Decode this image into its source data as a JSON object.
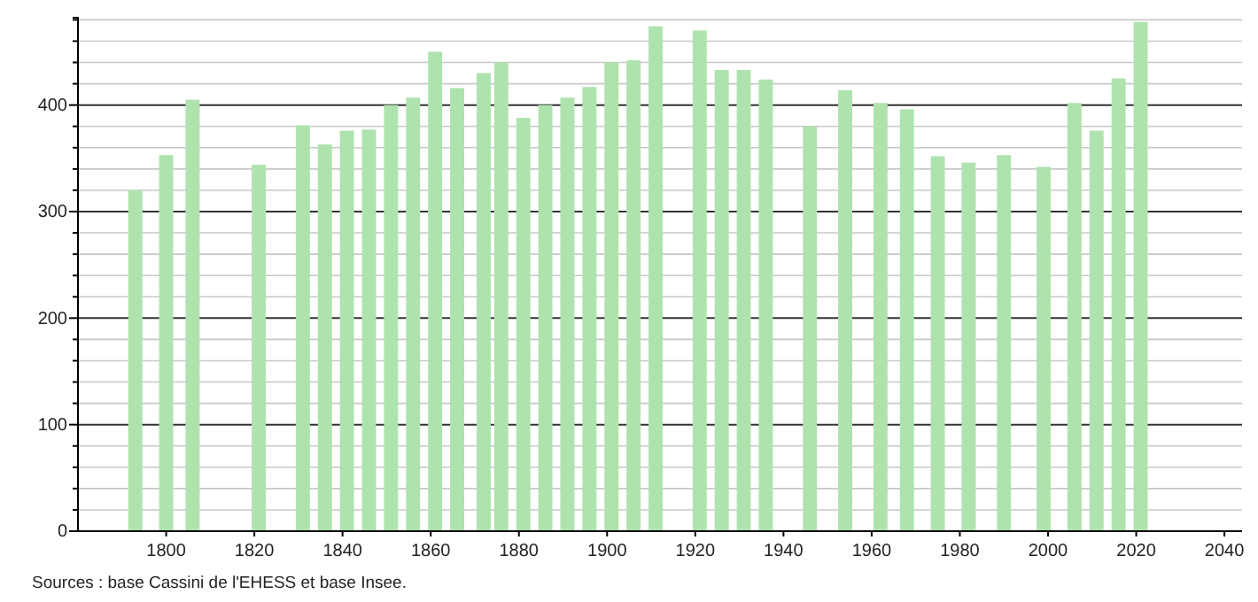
{
  "chart_data": {
    "type": "bar",
    "x": [
      1793,
      1800,
      1806,
      1821,
      1831,
      1836,
      1841,
      1846,
      1851,
      1856,
      1861,
      1866,
      1872,
      1876,
      1881,
      1886,
      1891,
      1896,
      1901,
      1906,
      1911,
      1921,
      1926,
      1931,
      1936,
      1946,
      1954,
      1962,
      1968,
      1975,
      1982,
      1990,
      1999,
      2006,
      2011,
      2016,
      2021
    ],
    "values": [
      320,
      353,
      405,
      344,
      381,
      363,
      376,
      377,
      400,
      407,
      450,
      416,
      430,
      440,
      388,
      400,
      407,
      417,
      440,
      442,
      474,
      470,
      433,
      433,
      424,
      380,
      414,
      402,
      396,
      352,
      346,
      353,
      342,
      402,
      376,
      425,
      478
    ],
    "color": "#aee3ae",
    "xlim": [
      1780,
      2044
    ],
    "xticks": [
      1800,
      1820,
      1840,
      1860,
      1880,
      1900,
      1920,
      1940,
      1960,
      1980,
      2000,
      2020,
      2040
    ],
    "ylim": [
      0,
      482
    ],
    "yticks": [
      0,
      {
        "value": 20,
        "label": null
      },
      {
        "value": 40,
        "label": null
      },
      {
        "value": 60,
        "label": null
      },
      {
        "value": 80,
        "label": null
      },
      100,
      {
        "value": 120,
        "label": null
      },
      {
        "value": 140,
        "label": null
      },
      {
        "value": 160,
        "label": null
      },
      {
        "value": 180,
        "label": null
      },
      200,
      {
        "value": 220,
        "label": null
      },
      {
        "value": 240,
        "label": null
      },
      {
        "value": 260,
        "label": null
      },
      {
        "value": 280,
        "label": null
      },
      300,
      {
        "value": 320,
        "label": null
      },
      {
        "value": 340,
        "label": null
      },
      {
        "value": 360,
        "label": null
      },
      {
        "value": 380,
        "label": null
      },
      400,
      {
        "value": 420,
        "label": null
      },
      {
        "value": 440,
        "label": null
      },
      {
        "value": 460,
        "label": null
      },
      {
        "value": 480,
        "label": null
      }
    ],
    "grid": true,
    "annotations": [
      "Sources : base Cassini de l'EHESS et base Insee."
    ]
  }
}
